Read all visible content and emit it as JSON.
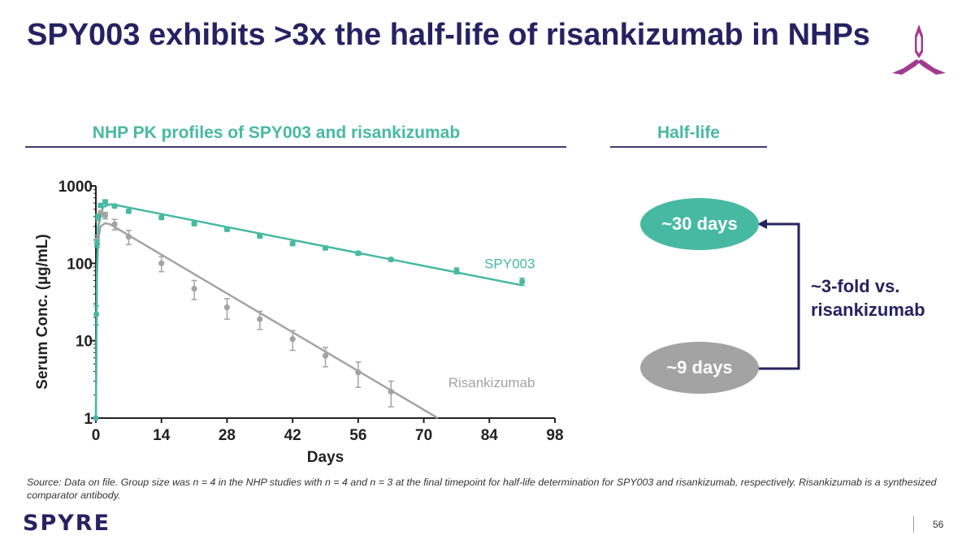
{
  "title": "SPY003 exhibits >3x the half-life of risankizumab in NHPs",
  "left_section_heading": "NHP PK profiles of SPY003 and risankizumab",
  "right_section_heading": "Half-life",
  "half_life": {
    "spy003_value": "~30 days",
    "risankizumab_value": "~9 days",
    "fold_line1": "~3-fold vs.",
    "fold_line2": "risankizumab"
  },
  "source_note": "Source: Data on file. Group size was n = 4 in the NHP studies with n = 4 and n = 3 at the final timepoint for half-life determination for SPY003 and risankizumab, respectively. Risankizumab is a synthesized comparator antibody.",
  "brand": "SPYRE",
  "page_number": "56",
  "colors": {
    "title": "#262262",
    "spy003": "#47b9a3",
    "risankizumab": "#a3a3a3",
    "accent_purple": "#a23b8f",
    "arrow": "#262262"
  },
  "chart_data": {
    "type": "scatter",
    "scale_y": "log",
    "xlabel": "Days",
    "ylabel": "Serum Conc. (µg/mL)",
    "xlim": [
      0,
      98
    ],
    "ylim": [
      1,
      1000
    ],
    "x_ticks": [
      0,
      14,
      28,
      42,
      56,
      70,
      84,
      98
    ],
    "y_ticks": [
      {
        "value": 1,
        "label": "1"
      },
      {
        "value": 10,
        "label": "10"
      },
      {
        "value": 100,
        "label": "100"
      },
      {
        "value": 1000,
        "label": "1000"
      }
    ],
    "series": [
      {
        "name": "SPY003",
        "label": "SPY003",
        "label_at": [
          96,
          100
        ],
        "color": "#47b9a3",
        "points": [
          {
            "x": 0,
            "y": 1,
            "err": 0
          },
          {
            "x": 0.1,
            "y": 22,
            "err": 6
          },
          {
            "x": 0.25,
            "y": 180,
            "err": 20
          },
          {
            "x": 0.5,
            "y": 400,
            "err": 30
          },
          {
            "x": 1,
            "y": 560,
            "err": 30
          },
          {
            "x": 2,
            "y": 620,
            "err": 40
          },
          {
            "x": 4,
            "y": 550,
            "err": 30
          },
          {
            "x": 7,
            "y": 470,
            "err": 25
          },
          {
            "x": 14,
            "y": 390,
            "err": 20
          },
          {
            "x": 21,
            "y": 325,
            "err": 18
          },
          {
            "x": 28,
            "y": 275,
            "err": 15
          },
          {
            "x": 35,
            "y": 225,
            "err": 12
          },
          {
            "x": 42,
            "y": 180,
            "err": 10
          },
          {
            "x": 49,
            "y": 158,
            "err": 8
          },
          {
            "x": 56,
            "y": 135,
            "err": 7
          },
          {
            "x": 63,
            "y": 112,
            "err": 6
          },
          {
            "x": 77,
            "y": 80,
            "err": 7
          },
          {
            "x": 91,
            "y": 58,
            "err": 6
          }
        ],
        "fit": [
          [
            0,
            1
          ],
          [
            0.2,
            60
          ],
          [
            0.5,
            300
          ],
          [
            1.5,
            530
          ],
          [
            3,
            580
          ],
          [
            5,
            555
          ],
          [
            91,
            52
          ]
        ]
      },
      {
        "name": "Risankizumab",
        "label": "Risankizumab",
        "label_at": [
          96,
          2.9
        ],
        "color": "#a3a3a3",
        "points": [
          {
            "x": 0.25,
            "y": 200,
            "err": 30
          },
          {
            "x": 0.5,
            "y": 390,
            "err": 40
          },
          {
            "x": 1,
            "y": 440,
            "err": 40
          },
          {
            "x": 2,
            "y": 415,
            "err": 40
          },
          {
            "x": 4,
            "y": 320,
            "err": 50
          },
          {
            "x": 7,
            "y": 220,
            "err": 45
          },
          {
            "x": 14,
            "y": 100,
            "err": 22
          },
          {
            "x": 21,
            "y": 47,
            "err": 13
          },
          {
            "x": 28,
            "y": 27,
            "err": 8
          },
          {
            "x": 35,
            "y": 19,
            "err": 5
          },
          {
            "x": 42,
            "y": 10.5,
            "err": 3
          },
          {
            "x": 49,
            "y": 6.4,
            "err": 1.8
          },
          {
            "x": 56,
            "y": 3.9,
            "err": 1.4
          },
          {
            "x": 63,
            "y": 2.2,
            "err": 0.8
          }
        ],
        "fit": [
          [
            0,
            1
          ],
          [
            0.25,
            90
          ],
          [
            0.5,
            200
          ],
          [
            1,
            300
          ],
          [
            2,
            330
          ],
          [
            3,
            320
          ],
          [
            73,
            1
          ]
        ]
      }
    ]
  }
}
